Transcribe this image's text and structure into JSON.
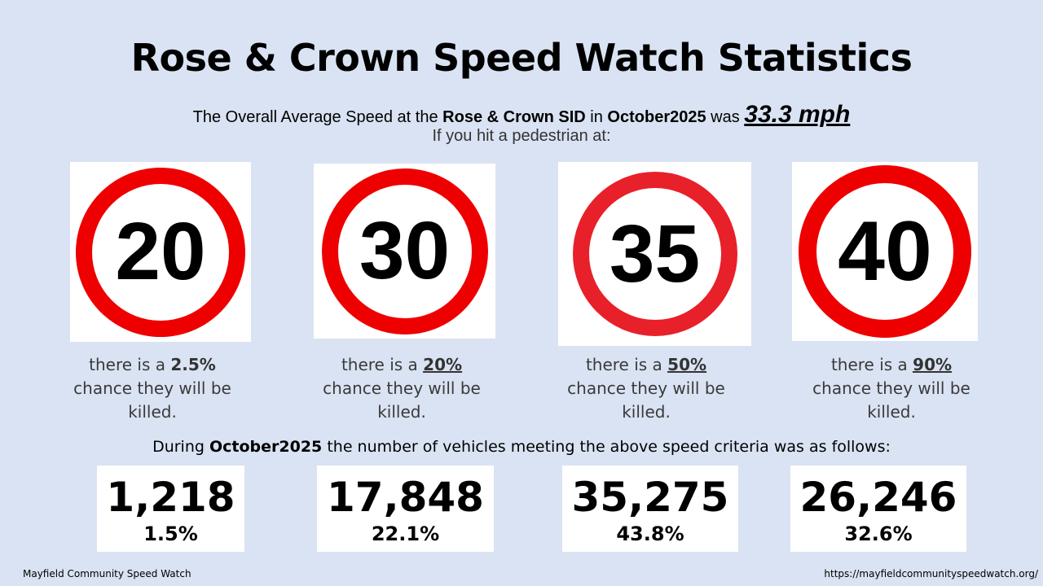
{
  "title": "Rose & Crown Speed Watch Statistics",
  "summary": {
    "pre": "The Overall Average Speed at the ",
    "site": "Rose & Crown SID",
    "mid": " in ",
    "month": "October2025",
    "post": " was ",
    "speed": "33.3 mph",
    "line2": "If you hit a pedestrian at:"
  },
  "signs": [
    {
      "limit": "20",
      "pre": "there is a ",
      "pct": "2.5%",
      "rest": "chance they will be",
      "end": "killed."
    },
    {
      "limit": "30",
      "pre": "there is a ",
      "pct": "20%",
      "rest": "chance they will be",
      "end": "killed."
    },
    {
      "limit": "35",
      "pre": "there is a ",
      "pct": "50%",
      "rest": "chance they will be",
      "end": "killed."
    },
    {
      "limit": "40",
      "pre": "there is a ",
      "pct": "90%",
      "rest": "chance they will be",
      "end": "killed."
    }
  ],
  "during": {
    "pre": "During ",
    "month": "October2025",
    "post": " the number of vehicles meeting the above speed criteria was as follows:"
  },
  "counts": [
    {
      "value": "1,218",
      "pct": "1.5%"
    },
    {
      "value": "17,848",
      "pct": "22.1%"
    },
    {
      "value": "35,275",
      "pct": "43.8%"
    },
    {
      "value": "26,246",
      "pct": "32.6%"
    }
  ],
  "footer": {
    "left": "Mayfield Community Speed Watch",
    "right": "https://mayfieldcommunityspeedwatch.org/"
  },
  "colors": {
    "background": "#dae3f3",
    "ring": "#ee0000"
  }
}
